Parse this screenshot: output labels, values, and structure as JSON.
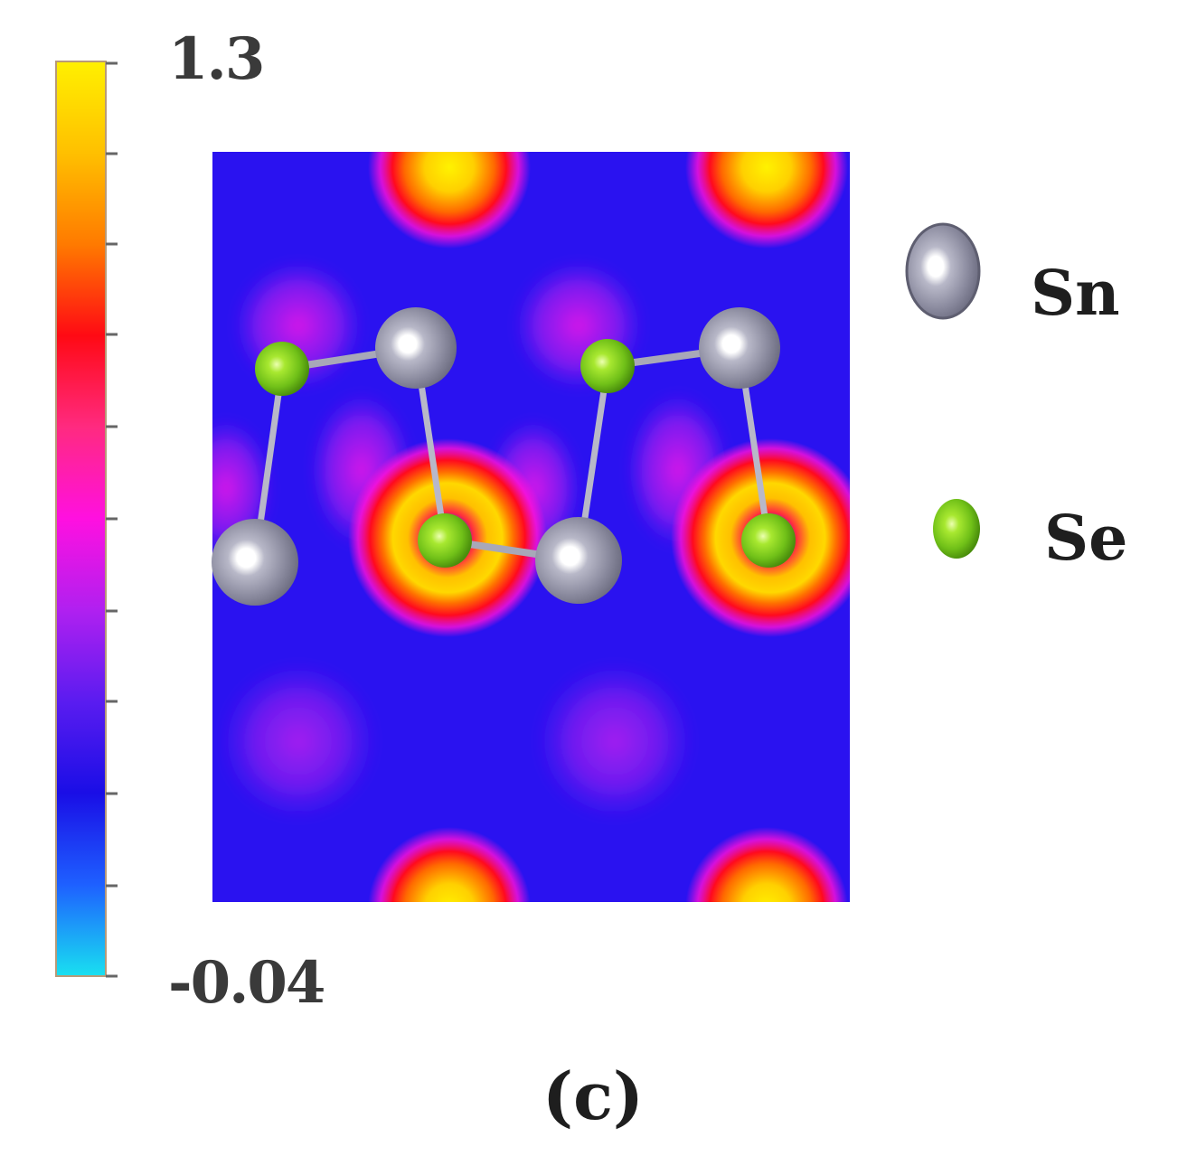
{
  "colorbar": {
    "max_label": "1.3",
    "min_label": "-0.04",
    "stops": [
      "#19e0f0",
      "#1e60ff",
      "#1a0ee6",
      "#5a1cf0",
      "#b020f0",
      "#ff10e0",
      "#ff2a80",
      "#ff0a14",
      "#ff7a00",
      "#ffc000",
      "#fff000"
    ]
  },
  "legend": {
    "sn": {
      "label": "Sn",
      "color": "#8a8aa0"
    },
    "se": {
      "label": "Se",
      "color": "#7ad21e"
    }
  },
  "panel_label": "(c)",
  "map": {
    "background": "#2a12f0",
    "high_peaks_color": "#ffe000",
    "low_bumps_color": "#a020f0"
  }
}
